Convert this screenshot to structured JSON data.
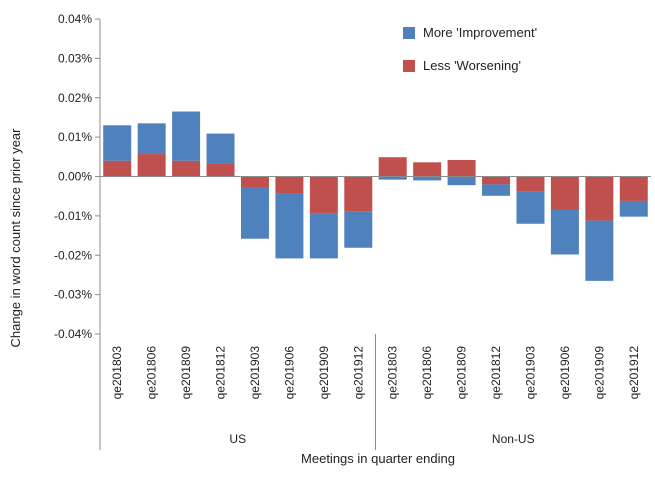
{
  "chart_data": {
    "type": "bar",
    "stacked": true,
    "ylabel": "Change in word count since prior year",
    "xlabel": "Meetings in quarter ending",
    "ylim": [
      -0.04,
      0.04
    ],
    "y_tick_values": [
      -0.04,
      -0.03,
      -0.02,
      -0.01,
      0.0,
      0.01,
      0.02,
      0.03,
      0.04
    ],
    "y_tick_labels": [
      "-0.04%",
      "-0.03%",
      "-0.02%",
      "-0.01%",
      "0.00%",
      "0.01%",
      "0.02%",
      "0.03%",
      "0.04%"
    ],
    "grid": false,
    "legend_position": "top-right",
    "categories": [
      "qe201803",
      "qe201806",
      "qe201809",
      "qe201812",
      "qe201903",
      "qe201906",
      "qe201909",
      "qe201912",
      "qe201803",
      "qe201806",
      "qe201809",
      "qe201812",
      "qe201903",
      "qe201906",
      "qe201909",
      "qe201912"
    ],
    "groups": [
      {
        "label": "US",
        "count": 8
      },
      {
        "label": "Non-US",
        "count": 8
      }
    ],
    "series": [
      {
        "name": "Less 'Worsening'",
        "color": "#c0504d",
        "values": [
          0.004,
          0.0057,
          0.004,
          0.0034,
          -0.0028,
          -0.0042,
          -0.0093,
          -0.0088,
          0.0049,
          0.0036,
          0.0042,
          -0.002,
          -0.0037,
          -0.0085,
          -0.0112,
          -0.0062
        ]
      },
      {
        "name": "More 'Improvement'",
        "color": "#4f81bd",
        "values": [
          0.009,
          0.0078,
          0.0125,
          0.0075,
          -0.013,
          -0.0166,
          -0.0115,
          -0.0093,
          -0.0008,
          -0.001,
          -0.0022,
          -0.0029,
          -0.0083,
          -0.0113,
          -0.0153,
          -0.004
        ]
      }
    ]
  }
}
